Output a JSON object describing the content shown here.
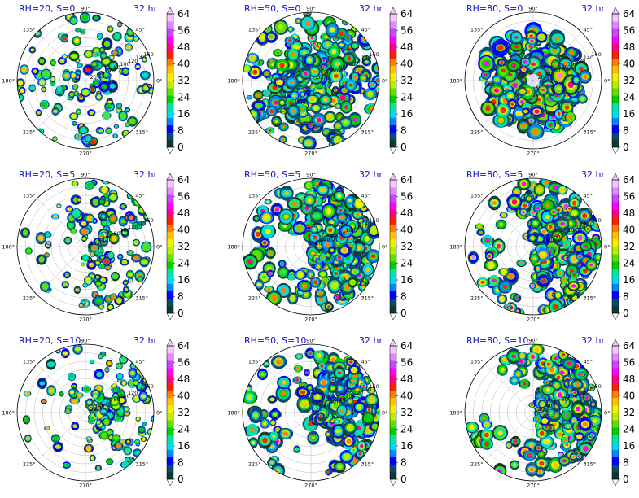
{
  "chart_data": [
    {
      "type": "heatmap",
      "title": "RH=20, S=0",
      "time_label": "32 hr",
      "rh": 20,
      "shear": 0,
      "structure": "scattered-rings"
    },
    {
      "type": "heatmap",
      "title": "RH=50, S=0",
      "time_label": "32 hr",
      "rh": 50,
      "shear": 0,
      "structure": "broad-spiral"
    },
    {
      "type": "heatmap",
      "title": "RH=80, S=0",
      "time_label": "32 hr",
      "rh": 80,
      "shear": 0,
      "structure": "strong-symmetric"
    },
    {
      "type": "heatmap",
      "title": "RH=20, S=5",
      "time_label": "32 hr",
      "rh": 20,
      "shear": 5,
      "structure": "weak-sheared"
    },
    {
      "type": "heatmap",
      "title": "RH=50, S=5",
      "time_label": "32 hr",
      "rh": 50,
      "shear": 5,
      "structure": "sheared"
    },
    {
      "type": "heatmap",
      "title": "RH=80, S=5",
      "time_label": "32 hr",
      "rh": 80,
      "shear": 5,
      "structure": "strong-sheared"
    },
    {
      "type": "heatmap",
      "title": "RH=20, S=10",
      "time_label": "32 hr",
      "rh": 20,
      "shear": 10,
      "structure": "weak-strong-shear"
    },
    {
      "type": "heatmap",
      "title": "RH=50, S=10",
      "time_label": "32 hr",
      "rh": 50,
      "shear": 10,
      "structure": "strong-shear"
    },
    {
      "type": "heatmap",
      "title": "RH=80, S=10",
      "time_label": "32 hr",
      "rh": 80,
      "shear": 10,
      "structure": "strong-shear-moist"
    }
  ],
  "polar_axis": {
    "azimuth_labels": [
      "0°",
      "45°",
      "90°",
      "135°",
      "180°",
      "225°",
      "270°",
      "315°"
    ],
    "radial_labels": [
      "20",
      "40",
      "60",
      "80",
      "100",
      "120",
      "140",
      "160"
    ],
    "radial_max": 160
  },
  "colorbar": {
    "ticks": [
      "0",
      "8",
      "16",
      "24",
      "32",
      "40",
      "48",
      "56",
      "64"
    ],
    "min": 0,
    "max": 64,
    "extend": "both",
    "colors": [
      "#0d3b2e",
      "#0a4a6a",
      "#0000ff",
      "#0088ff",
      "#00ddee",
      "#00e5a8",
      "#00d000",
      "#60e000",
      "#b8f000",
      "#f0f000",
      "#ffc000",
      "#ff8000",
      "#ff2000",
      "#ff0088",
      "#ff00ff",
      "#cc44ff",
      "#e088ff",
      "#f4c8ff"
    ]
  }
}
